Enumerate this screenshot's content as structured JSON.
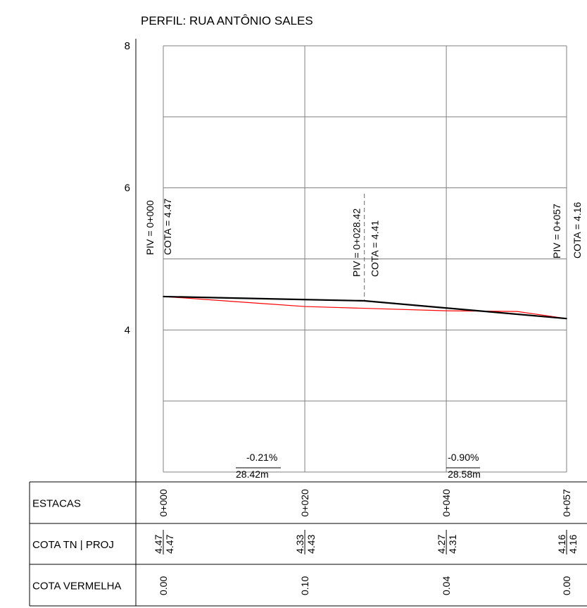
{
  "title": "PERFIL: RUA ANTÔNIO SALES",
  "colors": {
    "terrain": "#ff0000",
    "project": "#000000",
    "grid": "#808080"
  },
  "chart_data": {
    "type": "line",
    "title": "PERFIL: RUA ANTÔNIO SALES",
    "xlabel": "",
    "ylabel": "",
    "xlim": [
      0,
      57
    ],
    "ylim": [
      2,
      8
    ],
    "y_ticks": [
      "8",
      "6",
      "4"
    ],
    "series": [
      {
        "key": "project",
        "x": [
          0,
          28.42,
          57
        ],
        "y": [
          4.47,
          4.41,
          4.16
        ]
      },
      {
        "key": "terrain",
        "x": [
          0,
          3,
          10,
          20,
          40,
          50,
          57
        ],
        "y": [
          4.47,
          4.45,
          4.4,
          4.33,
          4.27,
          4.26,
          4.16
        ]
      }
    ],
    "piv": [
      {
        "x": 0,
        "label": "PIV = 0+000",
        "cota": "COTA = 4.47"
      },
      {
        "x": 28.42,
        "label": "PIV = 0+028.42",
        "cota": "COTA = 4.41"
      },
      {
        "x": 57,
        "label": "PIV = 0+057",
        "cota": "COTA = 4.16"
      }
    ],
    "grades": [
      {
        "x_start": 0,
        "slope": "-0.21%",
        "length": "28.42m"
      },
      {
        "x_start": 40,
        "slope": "-0.90%",
        "length": "28.58m"
      }
    ]
  },
  "table": {
    "row_labels": [
      "ESTACAS",
      "COTA TN | PROJ",
      "COTA VERMELHA"
    ],
    "stations": [
      {
        "x": 0,
        "estaca": "0+000",
        "tn": "4.47",
        "proj": "4.47",
        "vermelha": "0.00"
      },
      {
        "x": 20,
        "estaca": "0+020",
        "tn": "4.33",
        "proj": "4.43",
        "vermelha": "0.10"
      },
      {
        "x": 40,
        "estaca": "0+040",
        "tn": "4.27",
        "proj": "4.31",
        "vermelha": "0.04"
      },
      {
        "x": 57,
        "estaca": "0+057",
        "tn": "4.16",
        "proj": "4.16",
        "vermelha": "0.00"
      }
    ]
  }
}
